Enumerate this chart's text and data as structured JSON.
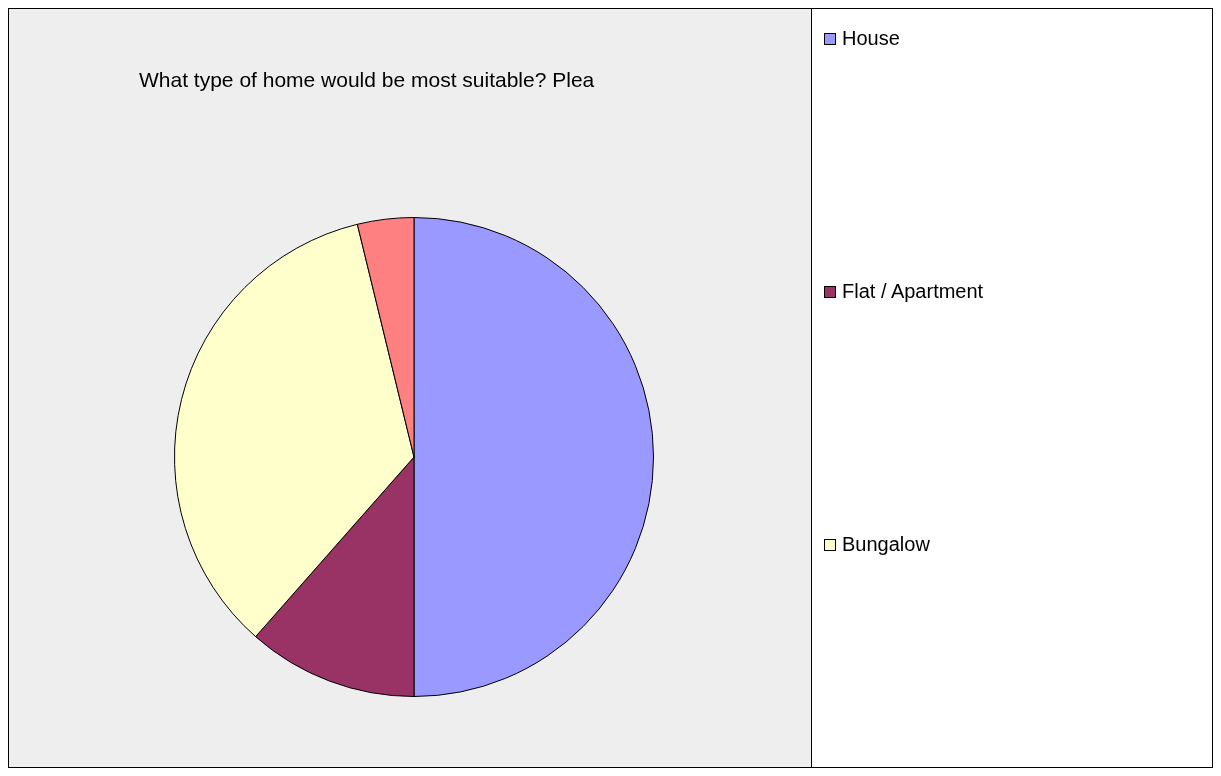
{
  "chart_data": {
    "type": "pie",
    "title": "What type of home would be most suitable? Plea",
    "categories": [
      "House",
      "Flat / Apartment",
      "Bungalow",
      null
    ],
    "values": [
      50,
      11.5,
      34.7,
      3.8
    ],
    "colors": [
      "#9999ff",
      "#993366",
      "#ffffcc",
      "#ff8080"
    ],
    "legend": "right"
  }
}
